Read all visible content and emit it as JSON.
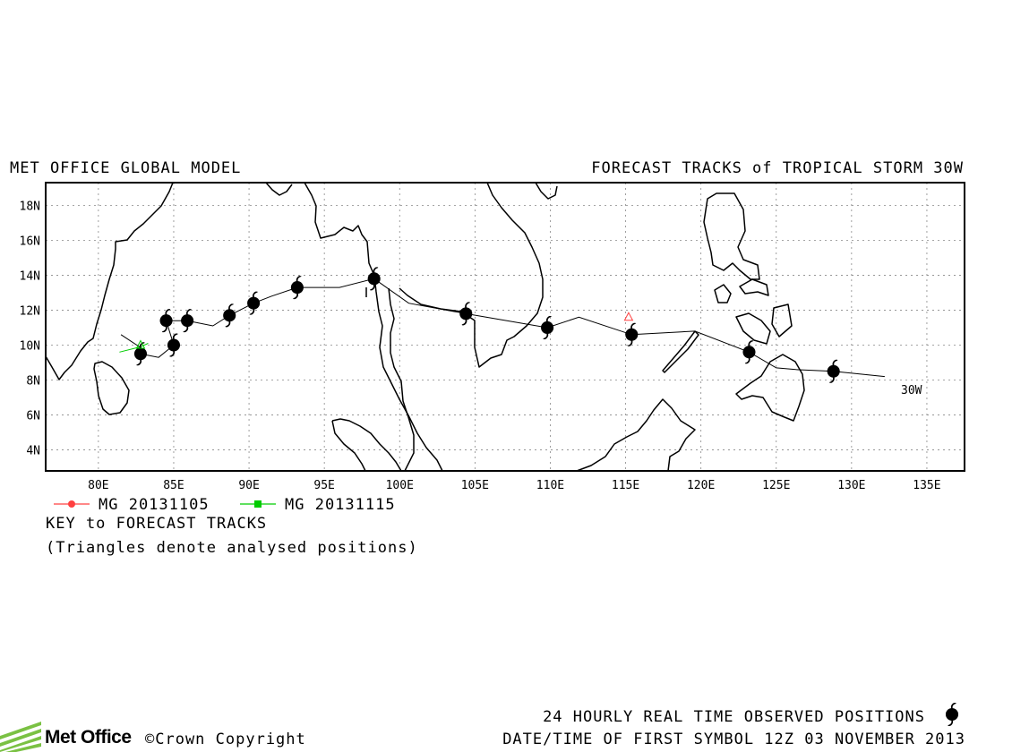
{
  "header": {
    "left_title": "MET OFFICE GLOBAL MODEL",
    "right_title": "FORECAST TRACKS of TROPICAL STORM 30W"
  },
  "map": {
    "lon_ticks": [
      "80E",
      "85E",
      "90E",
      "95E",
      "100E",
      "105E",
      "110E",
      "115E",
      "120E",
      "125E",
      "130E",
      "135E"
    ],
    "lat_ticks": [
      "18N",
      "16N",
      "14N",
      "12N",
      "10N",
      "8N",
      "6N",
      "4N"
    ],
    "lon_range": [
      76.5,
      137.5
    ],
    "lat_range": [
      2.8,
      19.3
    ],
    "grid": true,
    "storm_label": "30W"
  },
  "legend": {
    "items": [
      {
        "label": "MG 20131105",
        "color": "#ff4040",
        "marker": "circle"
      },
      {
        "label": "MG 20131115",
        "color": "#00cc00",
        "marker": "square"
      }
    ],
    "key_title": "KEY to FORECAST TRACKS",
    "note": "(Triangles denote analysed positions)"
  },
  "observed_track": {
    "points": [
      {
        "lon": 128.8,
        "lat": 8.5
      },
      {
        "lon": 123.2,
        "lat": 9.6
      },
      {
        "lon": 115.4,
        "lat": 10.6
      },
      {
        "lon": 109.8,
        "lat": 11.0
      },
      {
        "lon": 104.4,
        "lat": 11.8
      },
      {
        "lon": 98.3,
        "lat": 13.8
      },
      {
        "lon": 93.2,
        "lat": 13.3
      },
      {
        "lon": 90.3,
        "lat": 12.4
      },
      {
        "lon": 88.7,
        "lat": 11.7
      },
      {
        "lon": 85.9,
        "lat": 11.4
      },
      {
        "lon": 84.5,
        "lat": 11.4
      },
      {
        "lon": 85.0,
        "lat": 10.0
      },
      {
        "lon": 82.8,
        "lat": 9.5
      }
    ],
    "line": [
      [
        132.2,
        8.2
      ],
      [
        128.8,
        8.5
      ],
      [
        126.3,
        8.6
      ],
      [
        125.0,
        8.7
      ],
      [
        123.2,
        9.6
      ],
      [
        119.6,
        10.8
      ],
      [
        115.4,
        10.6
      ],
      [
        111.9,
        11.6
      ],
      [
        109.8,
        11.0
      ],
      [
        104.4,
        11.8
      ],
      [
        100.6,
        12.4
      ],
      [
        98.3,
        13.8
      ],
      [
        96.0,
        13.3
      ],
      [
        93.2,
        13.3
      ],
      [
        91.5,
        12.8
      ],
      [
        90.3,
        12.4
      ],
      [
        88.7,
        11.7
      ],
      [
        87.6,
        11.1
      ],
      [
        85.9,
        11.4
      ],
      [
        84.5,
        11.4
      ],
      [
        85.0,
        10.0
      ],
      [
        84.0,
        9.3
      ],
      [
        82.8,
        9.5
      ]
    ]
  },
  "forecast_tracks": [
    {
      "name": "MG 20131105",
      "color": "#ff4040",
      "analysed": [
        {
          "lon": 115.2,
          "lat": 11.6
        }
      ],
      "line": []
    },
    {
      "name": "MG 20131115",
      "color": "#00cc00",
      "analysed": [
        {
          "lon": 82.8,
          "lat": 10.0
        }
      ],
      "line": [
        [
          81.4,
          9.6
        ],
        [
          82.8,
          9.9
        ],
        [
          83.3,
          10.1
        ]
      ]
    }
  ],
  "footer": {
    "observed_label": "24 HOURLY REAL TIME OBSERVED POSITIONS",
    "first_symbol": "DATE/TIME OF FIRST SYMBOL 12Z 03 NOVEMBER 2013",
    "logo_text": "Met Office",
    "copyright": "©Crown Copyright"
  },
  "colors": {
    "observed": "#000000",
    "grid": "#888888",
    "logo_green": "#7ac143"
  }
}
